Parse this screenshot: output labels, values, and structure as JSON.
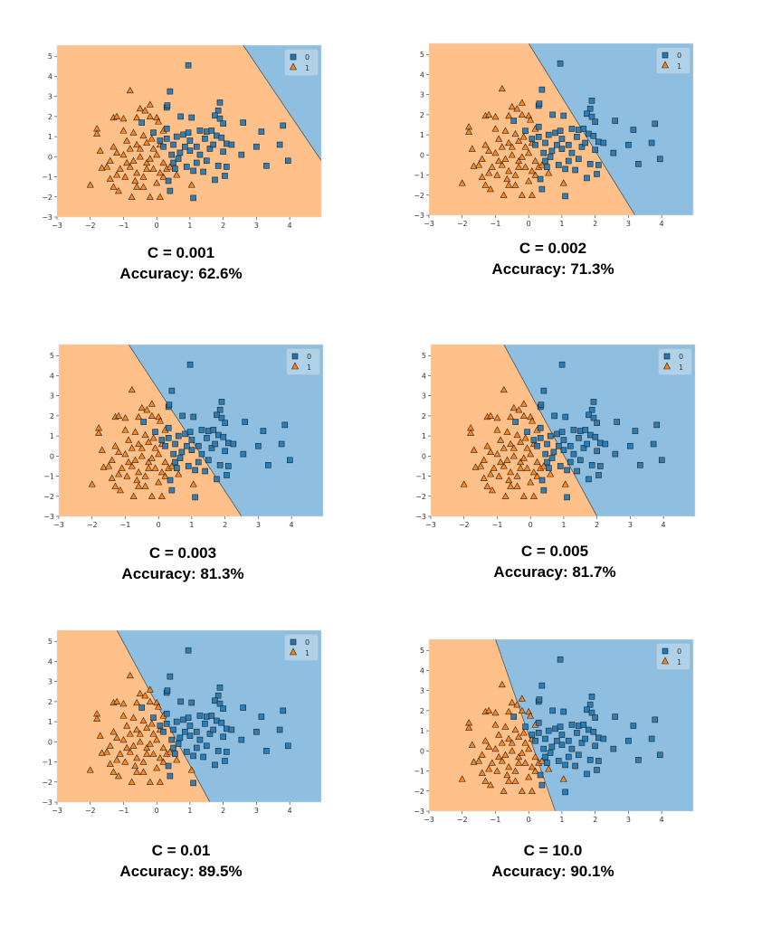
{
  "chart_data": {
    "type": "scatter",
    "description_free": true,
    "xlim": [
      -3,
      4.95
    ],
    "ylim": [
      -3,
      5.55
    ],
    "xticks": [
      -3,
      -2,
      -1,
      0,
      1,
      2,
      3,
      4
    ],
    "yticks": [
      -3,
      -2,
      -1,
      0,
      1,
      2,
      3,
      4,
      5
    ],
    "legend": {
      "position": "top-right",
      "entries": [
        "0",
        "1"
      ]
    },
    "colors": {
      "class0": "#1f77b4",
      "class1": "#ff7f0e",
      "region0": "#8fbfe0",
      "region1": "#ffc08a"
    },
    "points": {
      "0": [
        [
          0.95,
          4.55
        ],
        [
          0.4,
          3.25
        ],
        [
          0.3,
          2.45
        ],
        [
          0.32,
          2.55
        ],
        [
          0.72,
          2.0
        ],
        [
          1.05,
          1.95
        ],
        [
          1.9,
          2.7
        ],
        [
          1.85,
          2.3
        ],
        [
          1.75,
          2.05
        ],
        [
          1.9,
          1.9
        ],
        [
          2.0,
          1.65
        ],
        [
          2.6,
          1.7
        ],
        [
          3.8,
          1.55
        ],
        [
          3.15,
          1.25
        ],
        [
          1.3,
          1.3
        ],
        [
          1.5,
          1.25
        ],
        [
          1.65,
          1.3
        ],
        [
          1.8,
          1.05
        ],
        [
          1.95,
          0.95
        ],
        [
          2.1,
          0.65
        ],
        [
          2.25,
          0.6
        ],
        [
          2.55,
          0.1
        ],
        [
          3.0,
          0.5
        ],
        [
          3.7,
          0.6
        ],
        [
          3.95,
          -0.2
        ],
        [
          3.3,
          -0.45
        ],
        [
          2.0,
          0.25
        ],
        [
          2.1,
          -0.5
        ],
        [
          2.05,
          -0.95
        ],
        [
          1.75,
          -1.15
        ],
        [
          1.4,
          -0.75
        ],
        [
          1.85,
          -0.45
        ],
        [
          1.1,
          -0.7
        ],
        [
          1.1,
          -2.05
        ],
        [
          0.4,
          -1.7
        ],
        [
          0.35,
          -1.2
        ],
        [
          0.9,
          -0.5
        ],
        [
          0.5,
          -0.3
        ],
        [
          0.7,
          0.2
        ],
        [
          0.5,
          0.6
        ],
        [
          0.3,
          1.4
        ],
        [
          -0.45,
          1.7
        ],
        [
          -0.1,
          1.2
        ],
        [
          0.1,
          0.8
        ],
        [
          0.2,
          0.5
        ],
        [
          0.6,
          1.0
        ],
        [
          0.8,
          1.1
        ],
        [
          0.95,
          1.2
        ],
        [
          1.2,
          0.5
        ],
        [
          1.3,
          0.1
        ],
        [
          1.5,
          -0.2
        ],
        [
          1.6,
          0.4
        ],
        [
          1.45,
          0.9
        ],
        [
          0.45,
          0.1
        ],
        [
          0.65,
          -0.1
        ],
        [
          1.0,
          0.3
        ],
        [
          1.2,
          -0.3
        ],
        [
          1.7,
          0.6
        ],
        [
          0.85,
          0.5
        ],
        [
          0.3,
          0.9
        ],
        [
          0.55,
          -0.6
        ],
        [
          1.0,
          0.8
        ]
      ],
      "1": [
        [
          -0.8,
          3.3
        ],
        [
          -2.0,
          -1.4
        ],
        [
          -1.8,
          1.4
        ],
        [
          -1.8,
          1.15
        ],
        [
          -1.7,
          0.3
        ],
        [
          -1.65,
          -0.55
        ],
        [
          -1.3,
          1.95
        ],
        [
          -1.2,
          2.0
        ],
        [
          -1.0,
          1.9
        ],
        [
          -0.5,
          2.4
        ],
        [
          -0.35,
          2.3
        ],
        [
          -0.2,
          2.6
        ],
        [
          -0.6,
          1.95
        ],
        [
          -0.2,
          2.0
        ],
        [
          0.0,
          1.95
        ],
        [
          0.05,
          1.75
        ],
        [
          -1.0,
          1.3
        ],
        [
          -0.7,
          1.2
        ],
        [
          -0.4,
          1.05
        ],
        [
          -1.3,
          0.5
        ],
        [
          -1.2,
          0.2
        ],
        [
          -0.9,
          0.8
        ],
        [
          -0.6,
          0.6
        ],
        [
          -0.3,
          0.7
        ],
        [
          -0.1,
          0.4
        ],
        [
          0.1,
          0.6
        ],
        [
          0.2,
          1.3
        ],
        [
          -1.5,
          -0.5
        ],
        [
          -1.4,
          -1.1
        ],
        [
          -1.3,
          -1.5
        ],
        [
          -1.15,
          -1.7
        ],
        [
          -0.95,
          -1.0
        ],
        [
          -0.8,
          -0.5
        ],
        [
          -0.75,
          -2.0
        ],
        [
          -0.6,
          -1.5
        ],
        [
          -0.4,
          -1.5
        ],
        [
          -0.2,
          -2.0
        ],
        [
          0.1,
          -2.0
        ],
        [
          0.0,
          -1.3
        ],
        [
          0.2,
          -1.0
        ],
        [
          0.3,
          -0.6
        ],
        [
          -0.1,
          -0.6
        ],
        [
          -0.3,
          -0.3
        ],
        [
          -0.5,
          0.0
        ],
        [
          -0.7,
          -0.2
        ],
        [
          -0.9,
          -0.3
        ],
        [
          -1.1,
          -0.6
        ],
        [
          -1.0,
          0.1
        ],
        [
          -0.6,
          -0.8
        ],
        [
          -0.4,
          -1.0
        ],
        [
          -0.2,
          -0.1
        ],
        [
          0.0,
          0.1
        ],
        [
          0.2,
          -0.3
        ],
        [
          0.4,
          -0.5
        ],
        [
          1.05,
          -1.4
        ],
        [
          0.6,
          -0.9
        ],
        [
          -0.5,
          0.4
        ],
        [
          -0.8,
          0.4
        ],
        [
          -1.2,
          -0.9
        ],
        [
          -0.3,
          -0.6
        ],
        [
          0.1,
          -0.8
        ],
        [
          -0.65,
          -1.2
        ],
        [
          -1.4,
          -0.2
        ],
        [
          -0.15,
          0.9
        ]
      ]
    },
    "panels": [
      {
        "c_label": "C = 0.001",
        "accuracy_label": "Accuracy: 62.6%",
        "boundary": [
          [
            2.6,
            5.55
          ],
          [
            4.95,
            -0.2
          ]
        ]
      },
      {
        "c_label": "C = 0.002",
        "accuracy_label": "Accuracy: 71.3%",
        "boundary": [
          [
            0.0,
            5.55
          ],
          [
            3.2,
            -3
          ]
        ]
      },
      {
        "c_label": "C = 0.003",
        "accuracy_label": "Accuracy: 81.3%",
        "boundary": [
          [
            -0.9,
            5.55
          ],
          [
            2.5,
            -3
          ]
        ]
      },
      {
        "c_label": "C = 0.005",
        "accuracy_label": "Accuracy: 81.7%",
        "boundary": [
          [
            -0.8,
            5.55
          ],
          [
            2.0,
            -3
          ]
        ]
      },
      {
        "c_label": "C = 0.01",
        "accuracy_label": "Accuracy: 89.5%",
        "boundary": [
          [
            -1.2,
            5.55
          ],
          [
            1.6,
            -3
          ]
        ]
      },
      {
        "c_label": "C = 10.0",
        "accuracy_label": "Accuracy: 90.1%",
        "boundary": [
          [
            -1.0,
            5.55
          ],
          [
            0.8,
            -3
          ]
        ]
      }
    ]
  }
}
